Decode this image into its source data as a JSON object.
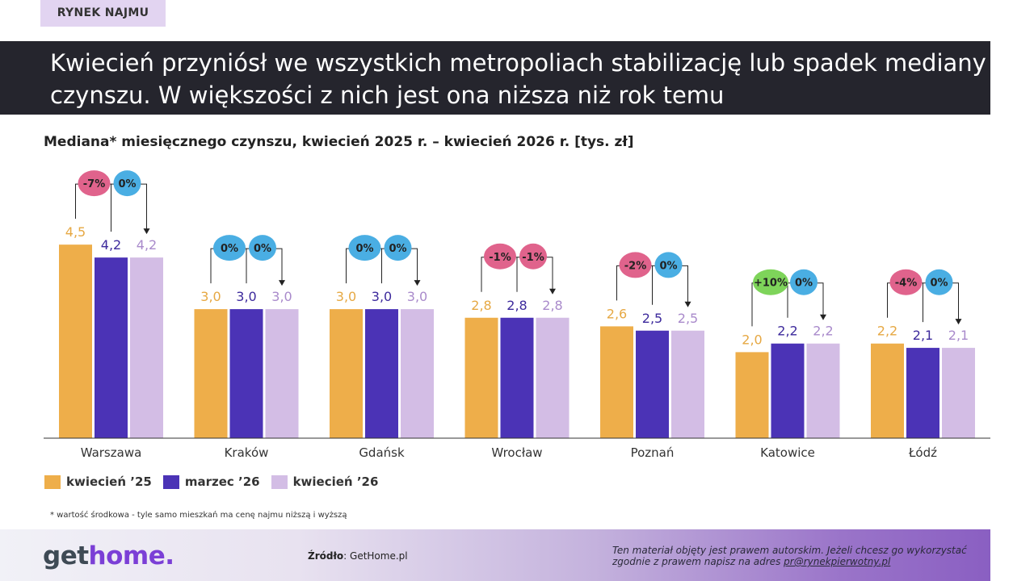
{
  "tag": "RYNEK NAJMU",
  "headline": "Kwiecień przyniósł we wszystkich metropoliach stabilizację lub spadek mediany czynszu. W większości z nich jest ona niższa niż rok temu",
  "footnote": "* wartość środkowa - tyle samo mieszkań ma cenę najmu niższą i wyższą",
  "footer": {
    "logo_part1": "get",
    "logo_part2": "home.",
    "source_label": "Źródło",
    "source_value": ": GetHome.pl",
    "copyright_text": "Ten materiał objęty jest prawem autorskim. Jeżeli chcesz go wykorzystać zgodnie z prawem napisz na adres ",
    "copyright_email": "pr@rynekpierwotny.pl"
  },
  "colors": {
    "apr25": "#eeae4a",
    "mar26": "#4b33b6",
    "apr26": "#d3bde5",
    "badge_down": "#e0638c",
    "badge_zero": "#4aaee3",
    "badge_up": "#7ed45a"
  },
  "chart_data": {
    "type": "bar",
    "title": "Mediana* miesięcznego czynszu, kwiecień 2025 r. – kwiecień 2026 r. [tys. zł]",
    "categories": [
      "Warszawa",
      "Kraków",
      "Gdańsk",
      "Wrocław",
      "Poznań",
      "Katowice",
      "Łódź"
    ],
    "series": [
      {
        "name": "kwiecień ’25",
        "values": [
          4.5,
          3.0,
          3.0,
          2.8,
          2.6,
          2.0,
          2.2
        ],
        "labels": [
          "4,5",
          "3,0",
          "3,0",
          "2,8",
          "2,6",
          "2,0",
          "2,2"
        ]
      },
      {
        "name": "marzec ’26",
        "values": [
          4.2,
          3.0,
          3.0,
          2.8,
          2.5,
          2.2,
          2.1
        ],
        "labels": [
          "4,2",
          "3,0",
          "3,0",
          "2,8",
          "2,5",
          "2,2",
          "2,1"
        ]
      },
      {
        "name": "kwiecień ’26",
        "values": [
          4.2,
          3.0,
          3.0,
          2.8,
          2.5,
          2.2,
          2.1
        ],
        "labels": [
          "4,2",
          "3,0",
          "3,0",
          "2,8",
          "2,5",
          "2,2",
          "2,1"
        ]
      }
    ],
    "yoy_change": [
      "-7%",
      "0%",
      "0%",
      "-1%",
      "-2%",
      "+10%",
      "-4%"
    ],
    "mom_change": [
      "0%",
      "0%",
      "0%",
      "-1%",
      "0%",
      "0%",
      "0%"
    ],
    "ylim": [
      0,
      5
    ],
    "grid": false,
    "legend_position": "bottom-left"
  }
}
